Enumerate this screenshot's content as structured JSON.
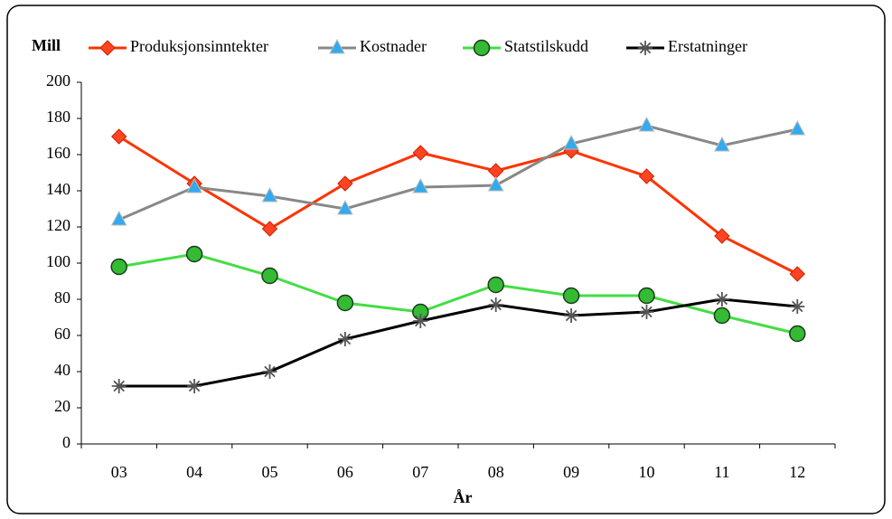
{
  "chart_data": {
    "type": "line",
    "ylabel": "Mill",
    "xlabel": "År",
    "categories": [
      "03",
      "04",
      "05",
      "06",
      "07",
      "08",
      "09",
      "10",
      "11",
      "12"
    ],
    "series": [
      {
        "name": "Produksjonsinntekter",
        "color": "#ff3300",
        "marker": "diamond",
        "marker_color": "#ff4422",
        "values": [
          170,
          144,
          119,
          144,
          161,
          151,
          162,
          148,
          115,
          94
        ]
      },
      {
        "name": "Kostnader",
        "color": "#888888",
        "marker": "triangle",
        "marker_color": "#33aaee",
        "values": [
          124,
          142,
          137,
          130,
          142,
          143,
          166,
          176,
          165,
          174
        ]
      },
      {
        "name": "Statstilskudd",
        "color": "#44dd44",
        "marker": "circle",
        "marker_color": "#33bb33",
        "values": [
          98,
          105,
          93,
          78,
          73,
          88,
          82,
          82,
          71,
          61
        ]
      },
      {
        "name": "Erstatninger",
        "color": "#000000",
        "marker": "star",
        "marker_color": "#555555",
        "values": [
          32,
          32,
          40,
          58,
          68,
          77,
          71,
          73,
          80,
          76
        ]
      }
    ],
    "ylim": [
      0,
      200
    ],
    "yticks": [
      0,
      20,
      40,
      60,
      80,
      100,
      120,
      140,
      160,
      180,
      200
    ],
    "grid": false
  }
}
